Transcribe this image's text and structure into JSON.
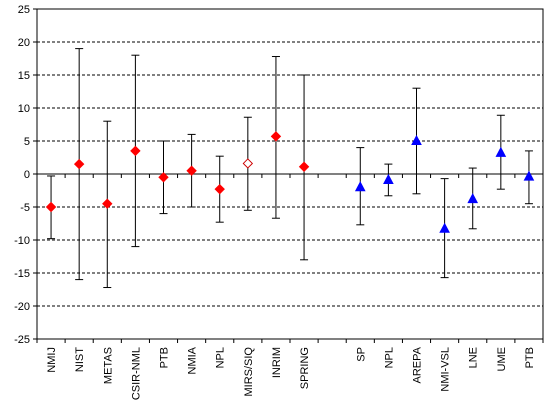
{
  "chart_data": {
    "type": "scatter",
    "title": "",
    "xlabel": "",
    "ylabel": "",
    "ylim": [
      -25,
      25
    ],
    "yticks": [
      -25,
      -20,
      -15,
      -10,
      -5,
      0,
      5,
      10,
      15,
      20,
      25
    ],
    "ytick_labels": [
      "-25",
      "-20",
      "-15",
      "-10",
      "-5",
      "0",
      "5",
      "10",
      "15",
      "20",
      "25"
    ],
    "grid": "horizontal dashed",
    "legend": "none",
    "categories": [
      "NMIJ",
      "NIST",
      "METAS",
      "CSIR-NML",
      "PTB",
      "NMIA",
      "NPL",
      "MIRS/SIQ",
      "INRIM",
      "SPRING",
      "",
      "SP",
      "NPL",
      "AREPA",
      "NMI-VSL",
      "LNE",
      "UME",
      "PTB"
    ],
    "series": [
      {
        "marker": "filled-diamond",
        "color": "#ff0000",
        "points": [
          {
            "category": "NMIJ",
            "y": -5.0,
            "err_low": -9.8,
            "err_high": -0.3
          },
          {
            "category": "NIST",
            "y": 1.5,
            "err_low": -16.0,
            "err_high": 19.0
          },
          {
            "category": "METAS",
            "y": -4.5,
            "err_low": -17.2,
            "err_high": 8.0
          },
          {
            "category": "CSIR-NML",
            "y": 3.5,
            "err_low": -11.0,
            "err_high": 18.0
          },
          {
            "category": "PTB",
            "y": -0.5,
            "err_low": -6.0,
            "err_high": 5.0
          },
          {
            "category": "NMIA",
            "y": 0.5,
            "err_low": -5.0,
            "err_high": 6.0
          },
          {
            "category": "NPL",
            "y": -2.3,
            "err_low": -7.3,
            "err_high": 2.7
          },
          {
            "category": "INRIM",
            "y": 5.7,
            "err_low": -6.7,
            "err_high": 17.8
          },
          {
            "category": "SPRING",
            "y": 1.1,
            "err_low": -13.0,
            "err_high": 15.0
          }
        ]
      },
      {
        "marker": "open-diamond",
        "color": "#cc0000",
        "points": [
          {
            "category": "MIRS/SIQ",
            "y": 1.6,
            "err_low": -5.5,
            "err_high": 8.6
          }
        ]
      },
      {
        "marker": "filled-triangle",
        "color": "#0000ff",
        "points": [
          {
            "category": "SP",
            "y": -2.0,
            "err_low": -7.7,
            "err_high": 4.0
          },
          {
            "category": "NPL",
            "y": -0.9,
            "err_low": -3.3,
            "err_high": 1.5
          },
          {
            "category": "AREPA",
            "y": 5.0,
            "err_low": -3.0,
            "err_high": 13.0
          },
          {
            "category": "NMI-VSL",
            "y": -8.3,
            "err_low": -15.7,
            "err_high": -0.7
          },
          {
            "category": "LNE",
            "y": -3.8,
            "err_low": -8.3,
            "err_high": 0.9
          },
          {
            "category": "UME",
            "y": 3.2,
            "err_low": -2.3,
            "err_high": 8.9
          },
          {
            "category": "PTB",
            "y": -0.4,
            "err_low": -4.5,
            "err_high": 3.5
          }
        ]
      }
    ]
  }
}
